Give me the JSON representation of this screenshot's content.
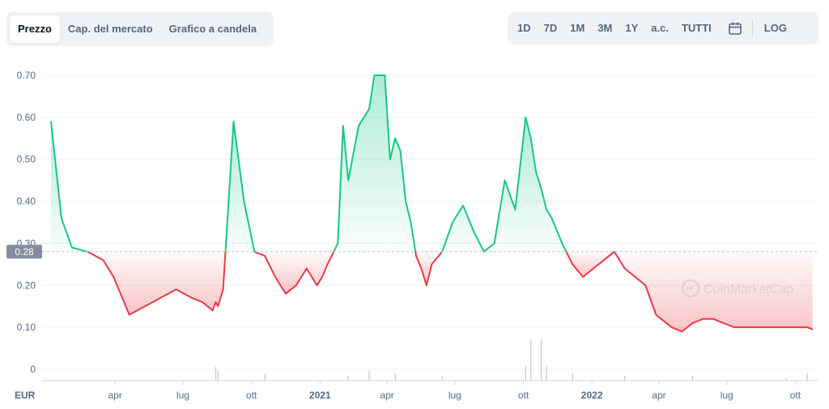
{
  "tabs": [
    {
      "label": "Prezzo",
      "active": true
    },
    {
      "label": "Cap. del mercato",
      "active": false
    },
    {
      "label": "Grafico a candela",
      "active": false
    }
  ],
  "ranges": [
    "1D",
    "7D",
    "1M",
    "3M",
    "1Y",
    "a.c.",
    "TUTTI"
  ],
  "log_label": "LOG",
  "icons": {
    "calendar": "calendar-icon"
  },
  "watermark": "CoinMarketCap",
  "currency_label": "EUR",
  "current_price_label": "0.28",
  "colors": {
    "up": "#16c784",
    "down": "#ea3943",
    "baseline": "#b9c1cc",
    "price_tag": "#858ca2"
  },
  "chart_data": {
    "type": "area",
    "baseline": 0.28,
    "ylim": [
      0,
      0.72
    ],
    "yticks": [
      "0",
      "0.10",
      "0.20",
      "0.30",
      "0.40",
      "0.50",
      "0.60",
      "0.70"
    ],
    "xtick_labels": [
      "apr",
      "lug",
      "ott",
      "2021",
      "apr",
      "lug",
      "ott",
      "2022",
      "apr",
      "lug",
      "ott"
    ],
    "x_dates": [
      "2020-01-06",
      "2020-01-20",
      "2020-02-03",
      "2020-02-24",
      "2020-03-16",
      "2020-03-30",
      "2020-04-20",
      "2020-05-11",
      "2020-06-01",
      "2020-06-22",
      "2020-07-13",
      "2020-07-27",
      "2020-08-10",
      "2020-08-14",
      "2020-08-17",
      "2020-08-24",
      "2020-09-07",
      "2020-09-21",
      "2020-10-05",
      "2020-10-19",
      "2020-11-02",
      "2020-11-16",
      "2020-11-30",
      "2020-12-14",
      "2020-12-21",
      "2020-12-28",
      "2021-01-04",
      "2021-01-11",
      "2021-01-25",
      "2021-02-01",
      "2021-02-08",
      "2021-02-22",
      "2021-03-08",
      "2021-03-15",
      "2021-03-29",
      "2021-04-05",
      "2021-04-12",
      "2021-04-19",
      "2021-04-26",
      "2021-05-03",
      "2021-05-10",
      "2021-05-17",
      "2021-05-24",
      "2021-05-31",
      "2021-06-14",
      "2021-06-28",
      "2021-07-12",
      "2021-07-26",
      "2021-08-09",
      "2021-08-23",
      "2021-09-06",
      "2021-09-20",
      "2021-10-04",
      "2021-10-11",
      "2021-10-18",
      "2021-10-25",
      "2021-11-01",
      "2021-11-08",
      "2021-11-22",
      "2021-12-06",
      "2021-12-20",
      "2022-01-03",
      "2022-01-17",
      "2022-01-31",
      "2022-02-14",
      "2022-02-28",
      "2022-03-14",
      "2022-03-28",
      "2022-04-04",
      "2022-04-18",
      "2022-05-02",
      "2022-05-09",
      "2022-05-16",
      "2022-05-30",
      "2022-06-13",
      "2022-06-27",
      "2022-07-11",
      "2022-07-25",
      "2022-08-08",
      "2022-08-22",
      "2022-09-05",
      "2022-09-19",
      "2022-10-03",
      "2022-10-17",
      "2022-10-24"
    ],
    "y_values": [
      0.59,
      0.36,
      0.29,
      0.28,
      0.26,
      0.22,
      0.13,
      0.15,
      0.17,
      0.19,
      0.17,
      0.16,
      0.14,
      0.16,
      0.15,
      0.19,
      0.59,
      0.4,
      0.28,
      0.27,
      0.22,
      0.18,
      0.2,
      0.24,
      0.22,
      0.2,
      0.22,
      0.25,
      0.3,
      0.58,
      0.45,
      0.58,
      0.62,
      0.7,
      0.7,
      0.5,
      0.55,
      0.52,
      0.4,
      0.35,
      0.27,
      0.24,
      0.2,
      0.25,
      0.28,
      0.35,
      0.39,
      0.33,
      0.28,
      0.3,
      0.45,
      0.38,
      0.6,
      0.55,
      0.47,
      0.43,
      0.38,
      0.36,
      0.3,
      0.25,
      0.22,
      0.24,
      0.26,
      0.28,
      0.24,
      0.22,
      0.2,
      0.13,
      0.12,
      0.1,
      0.09,
      0.1,
      0.11,
      0.12,
      0.12,
      0.11,
      0.1,
      0.1,
      0.1,
      0.1,
      0.1,
      0.1,
      0.1,
      0.1,
      0.095
    ],
    "xlim": [
      "2019-12-25",
      "2022-10-31"
    ],
    "volume_x_dates": [
      "2020-08-14",
      "2020-08-17",
      "2020-10-19",
      "2021-02-08",
      "2021-03-08",
      "2021-04-12",
      "2021-06-14",
      "2021-10-04",
      "2021-10-11",
      "2021-10-25",
      "2021-11-01",
      "2021-12-06",
      "2022-02-14",
      "2022-05-16",
      "2022-09-19",
      "2022-10-17"
    ],
    "volume_values": [
      0.3,
      0.2,
      0.15,
      0.1,
      0.2,
      0.15,
      0.1,
      0.3,
      0.85,
      0.85,
      0.3,
      0.15,
      0.1,
      0.1,
      0.05,
      0.15
    ]
  }
}
